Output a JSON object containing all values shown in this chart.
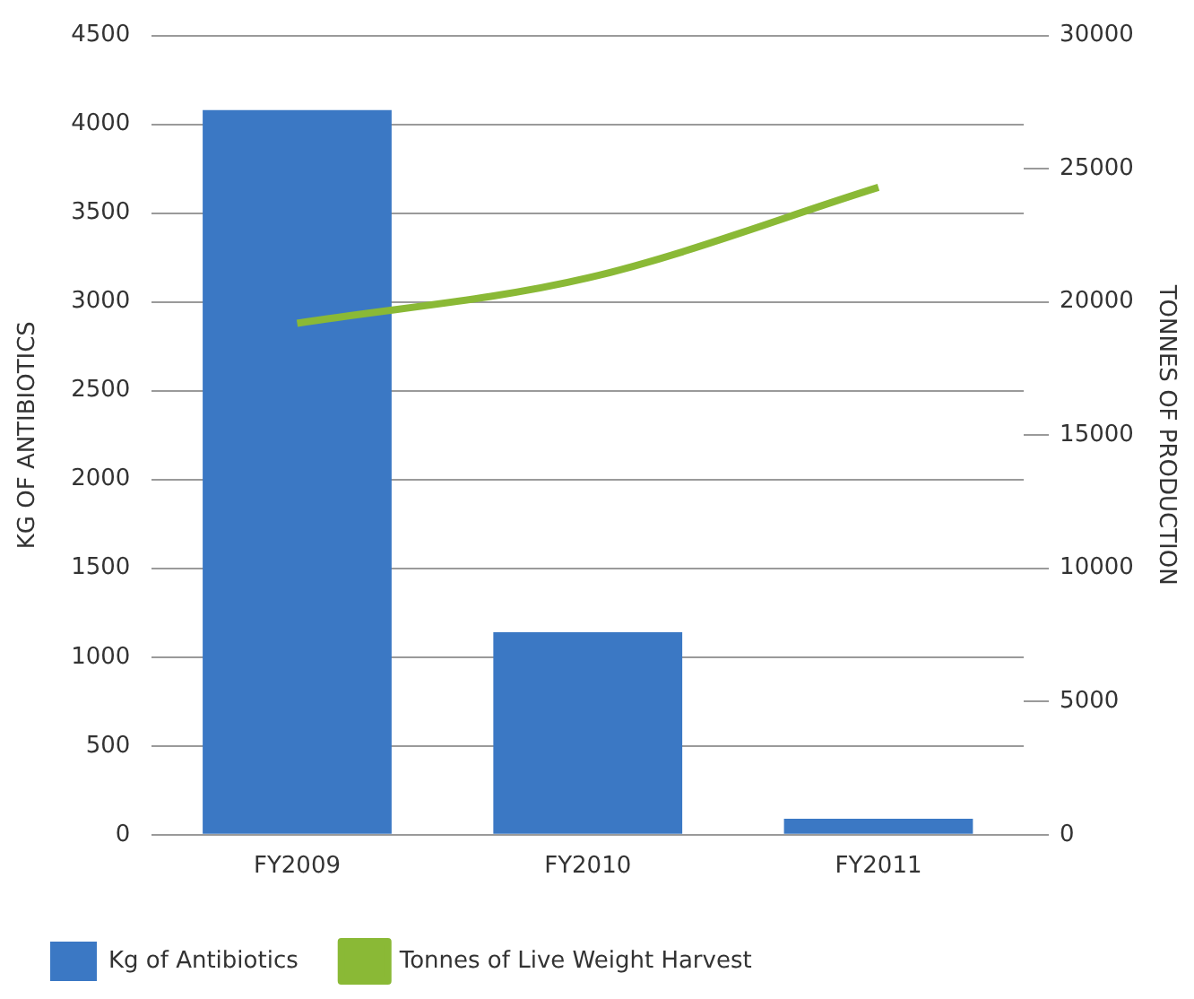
{
  "chart_data": {
    "type": "bar",
    "ylabel": "KG OF ANTIBIOTICS",
    "y2label": "TONNES OF PRODUCTION",
    "categories": [
      "FY2009",
      "FY2010",
      "FY2011"
    ],
    "series": [
      {
        "name": "Kg of Antibiotics",
        "color": "#3b78c4",
        "values": [
          4080,
          1140,
          90
        ]
      },
      {
        "name": "Tonnes of Live Weight Harvest",
        "type": "line",
        "axis": "y2",
        "color": "#8ab936",
        "values": [
          19200,
          20900,
          24300
        ]
      }
    ],
    "ylim": [
      0,
      4500
    ],
    "yticks": [
      0,
      500,
      1000,
      1500,
      2000,
      2500,
      3000,
      3500,
      4000,
      4500
    ],
    "y2lim": [
      0,
      30000
    ],
    "y2ticks": [
      0,
      5000,
      10000,
      15000,
      20000,
      25000,
      30000
    ],
    "grid": "y",
    "legend": "bottom",
    "marker": "none",
    "line_style": "solid"
  }
}
